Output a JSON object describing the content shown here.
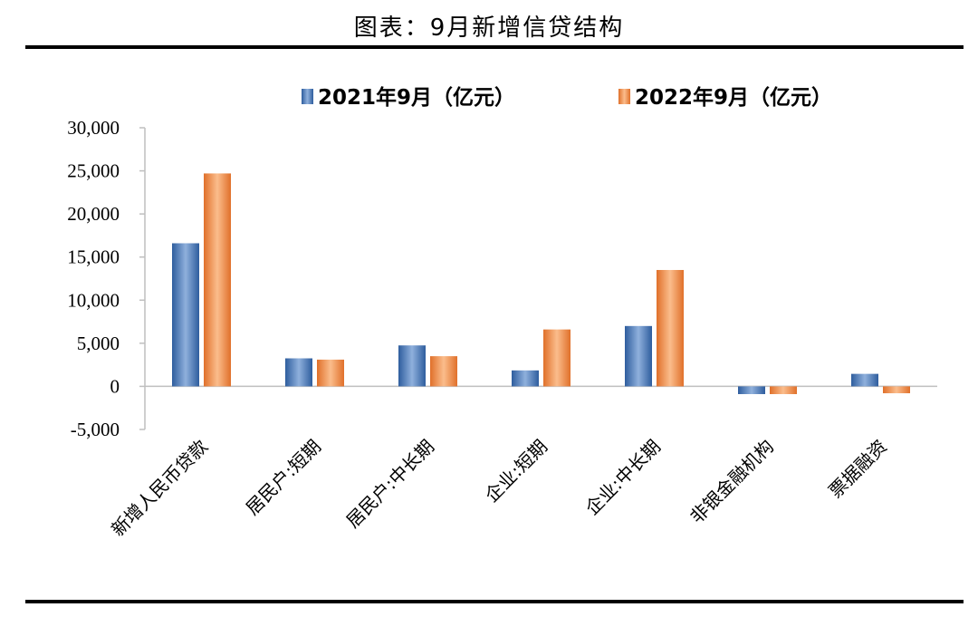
{
  "header": {
    "title": "图表：9月新增信贷结构"
  },
  "colors": {
    "series_2021": "#4f7fbf",
    "series_2022": "#f08a3c",
    "axis": "#bfbfbf"
  },
  "chart_data": {
    "type": "bar",
    "title": "图表：9月新增信贷结构",
    "categories": [
      "新增人民币贷款",
      "居民户:短期",
      "居民户:中长期",
      "企业:短期",
      "企业:中长期",
      "非银金融机构",
      "票据融资"
    ],
    "series": [
      {
        "name": "2021年9月（亿元）",
        "values": [
          16600,
          3250,
          4750,
          1850,
          7000,
          -900,
          1450
        ]
      },
      {
        "name": "2022年9月（亿元）",
        "values": [
          24700,
          3100,
          3500,
          6600,
          13500,
          -900,
          -800
        ]
      }
    ],
    "yticks": [
      "30,000",
      "25,000",
      "20,000",
      "15,000",
      "10,000",
      "5,000",
      "0",
      "-5,000"
    ],
    "ylim": [
      -5000,
      30000
    ],
    "legend_position": "top",
    "grid": false
  }
}
